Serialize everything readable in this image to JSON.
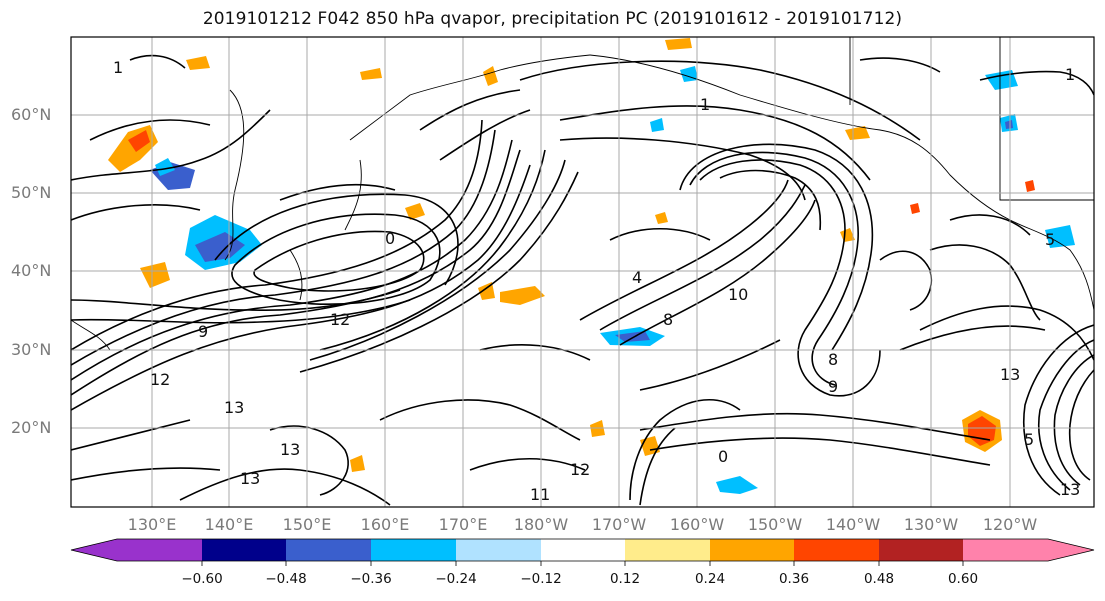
{
  "title": "2019101212 F042 850 hPa qvapor, precipitation PC (2019101612 - 2019101712)",
  "latitude_labels": [
    "60°N",
    "50°N",
    "40°N",
    "30°N",
    "20°N"
  ],
  "longitude_labels": [
    "130°E",
    "140°E",
    "150°E",
    "160°E",
    "170°E",
    "180°W",
    "170°W",
    "160°W",
    "150°W",
    "140°W",
    "130°W",
    "120°W"
  ],
  "contour_labels": [
    "13",
    "13",
    "13",
    "13",
    "12",
    "12",
    "11",
    "9",
    "9",
    "8",
    "8",
    "5",
    "5",
    "4",
    "1",
    "1",
    "1",
    "0",
    "0",
    "10",
    "12",
    "13"
  ],
  "colorbar": {
    "tick_labels": [
      "−0.60",
      "−0.48",
      "−0.36",
      "−0.24",
      "−0.12",
      "0.12",
      "0.24",
      "0.36",
      "0.48",
      "0.60"
    ],
    "colors": [
      "#9932cc",
      "#00008b",
      "#3a5fcd",
      "#00bfff",
      "#b0e2ff",
      "#ffffff",
      "#ffec8b",
      "#ffa500",
      "#ff4500",
      "#b22222",
      "#ff82ab"
    ]
  },
  "colors": {
    "contour": "#000000",
    "grid": "#a9a9a9",
    "axis_label": "#7a7a7a"
  }
}
